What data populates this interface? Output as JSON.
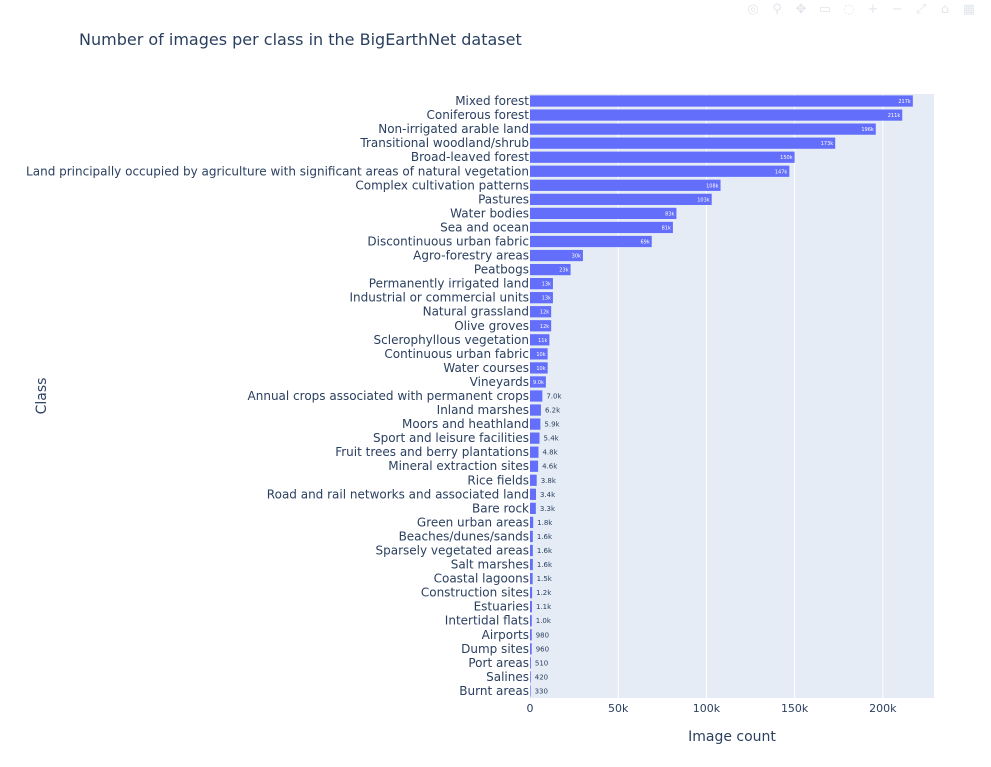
{
  "modebar": {
    "icons": [
      "camera-icon",
      "zoom-icon",
      "pan-icon",
      "select-icon",
      "lasso-icon",
      "zoom-in-icon",
      "zoom-out-icon",
      "autoscale-icon",
      "reset-icon",
      "logo-icon"
    ],
    "glyphs": [
      "◎",
      "⚲",
      "✥",
      "▭",
      "◌",
      "+",
      "−",
      "⤢",
      "⌂",
      "▦"
    ]
  },
  "colors": {
    "bar": "#636efa",
    "plot_bg": "#e5ecf6",
    "grid": "#ffffff",
    "text": "#2a3f5f"
  },
  "chart_data": {
    "type": "bar",
    "orientation": "horizontal",
    "title": "Number of images per class in the BigEarthNet dataset",
    "xlabel": "Image count",
    "ylabel": "Class",
    "xlim": [
      0,
      229000
    ],
    "xticks": [
      0,
      50000,
      100000,
      150000,
      200000
    ],
    "xtick_labels": [
      "0",
      "50k",
      "100k",
      "150k",
      "200k"
    ],
    "grid": true,
    "legend": "none",
    "categories": [
      "Mixed forest",
      "Coniferous forest",
      "Non-irrigated arable land",
      "Transitional woodland/shrub",
      "Broad-leaved forest",
      "Land principally occupied by agriculture with significant areas of natural vegetation",
      "Complex cultivation patterns",
      "Pastures",
      "Water bodies",
      "Sea and ocean",
      "Discontinuous urban fabric",
      "Agro-forestry areas",
      "Peatbogs",
      "Permanently irrigated land",
      "Industrial or commercial units",
      "Natural grassland",
      "Olive groves",
      "Sclerophyllous vegetation",
      "Continuous urban fabric",
      "Water courses",
      "Vineyards",
      "Annual crops associated with permanent crops",
      "Inland marshes",
      "Moors and heathland",
      "Sport and leisure facilities",
      "Fruit trees and berry plantations",
      "Mineral extraction sites",
      "Rice fields",
      "Road and rail networks and associated land",
      "Bare rock",
      "Green urban areas",
      "Beaches/dunes/sands",
      "Sparsely vegetated areas",
      "Salt marshes",
      "Coastal lagoons",
      "Construction sites",
      "Estuaries",
      "Intertidal flats",
      "Airports",
      "Dump sites",
      "Port areas",
      "Salines",
      "Burnt areas"
    ],
    "values": [
      217000,
      211000,
      196000,
      173000,
      150000,
      147000,
      108000,
      103000,
      83000,
      81000,
      69000,
      30000,
      23000,
      13000,
      13000,
      12000,
      12000,
      11000,
      10000,
      10000,
      9000,
      7000,
      6200,
      5900,
      5400,
      4800,
      4600,
      3800,
      3400,
      3300,
      1800,
      1600,
      1600,
      1600,
      1500,
      1200,
      1100,
      1000,
      980,
      960,
      510,
      420,
      330
    ],
    "data_labels": [
      "217k",
      "211k",
      "196k",
      "173k",
      "150k",
      "147k",
      "108k",
      "103k",
      "83k",
      "81k",
      "69k",
      "30k",
      "23k",
      "13k",
      "13k",
      "12k",
      "12k",
      "11k",
      "10k",
      "10k",
      "9.0k",
      "7.0k",
      "6.2k",
      "5.9k",
      "5.4k",
      "4.8k",
      "4.6k",
      "3.8k",
      "3.4k",
      "3.3k",
      "1.8k",
      "1.6k",
      "1.6k",
      "1.6k",
      "1.5k",
      "1.2k",
      "1.1k",
      "1.0k",
      "980",
      "960",
      "510",
      "420",
      "330"
    ]
  }
}
